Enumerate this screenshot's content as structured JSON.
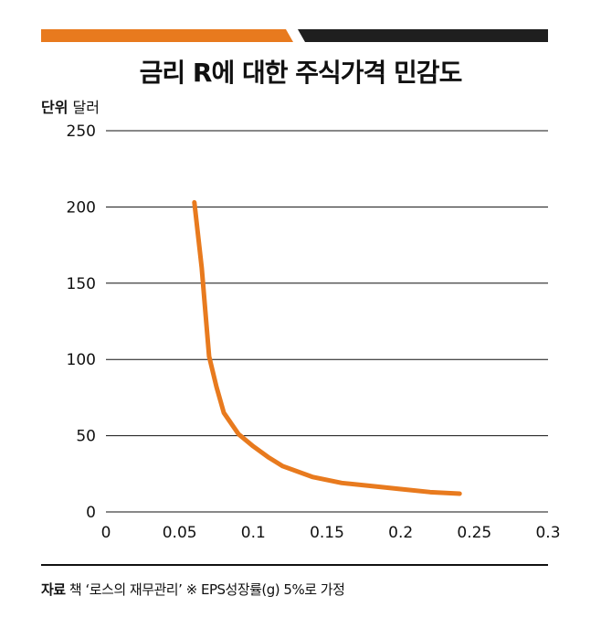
{
  "header": {
    "title": "금리 R에 대한 주식가격 민감도",
    "accent_color": "#e87a1e",
    "dark_color": "#1f1f1f"
  },
  "unit": {
    "label": "단위",
    "value": "달러"
  },
  "chart_data": {
    "type": "line",
    "title": "금리 R에 대한 주식가격 민감도",
    "xlabel": "",
    "ylabel": "",
    "xlim": [
      0,
      0.3
    ],
    "ylim": [
      0,
      250
    ],
    "x_ticks": [
      "0",
      "0.05",
      "0.1",
      "0.15",
      "0.2",
      "0.25",
      "0.3"
    ],
    "y_ticks": [
      "0",
      "50",
      "100",
      "150",
      "200",
      "250"
    ],
    "grid": "horizontal",
    "series": [
      {
        "color": "#e87a1e",
        "x": [
          0.06,
          0.065,
          0.07,
          0.075,
          0.08,
          0.09,
          0.1,
          0.11,
          0.12,
          0.14,
          0.16,
          0.18,
          0.2,
          0.22,
          0.24
        ],
        "y": [
          203,
          160,
          102,
          82,
          65,
          51,
          43,
          36,
          30,
          23,
          19,
          17,
          15,
          13,
          12
        ]
      }
    ]
  },
  "footer": {
    "source_label": "자료",
    "source_text": "책 ‘로스의 재무관리’ ※ EPS성장률(g) 5%로 가정"
  }
}
